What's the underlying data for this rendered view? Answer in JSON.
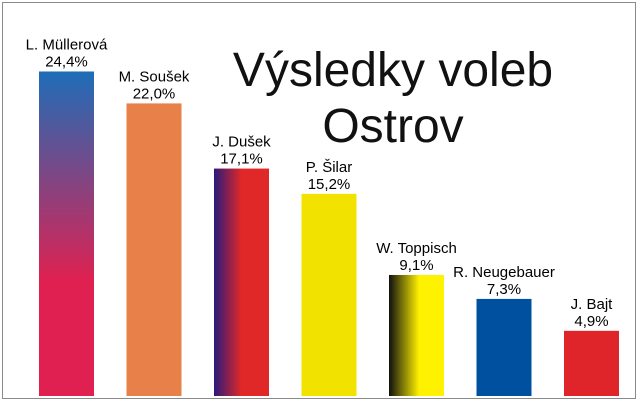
{
  "chart_data": {
    "type": "bar",
    "title_lines": [
      "Výsledky voleb",
      "Ostrov"
    ],
    "categories": [
      "L. Müllerová",
      "M. Soušek",
      "J. Dušek",
      "P. Šilar",
      "W. Toppisch",
      "R. Neugebauer",
      "J. Bajt"
    ],
    "values": [
      24.4,
      22.0,
      17.1,
      15.2,
      9.1,
      7.3,
      4.9
    ],
    "value_labels": [
      "24,4%",
      "22,0%",
      "17,1%",
      "15,2%",
      "9,1%",
      "7,3%",
      "4,9%"
    ],
    "fills": [
      "grad-mullerova",
      "solid-orange",
      "grad-dusek",
      "solid-yellow",
      "grad-toppisch",
      "solid-blue",
      "solid-red"
    ],
    "colors": {
      "orange": "#E8804A",
      "yellow": "#F2E200",
      "blue": "#0050A0",
      "red": "#E0252A",
      "mullerova_top": "#1E6DB8",
      "mullerova_bottom": "#E02050",
      "dusek_left": "#2A1A7A",
      "dusek_right": "#E02828",
      "toppisch_left": "#101010",
      "toppisch_right": "#FFF200"
    },
    "grid": false,
    "legend": "none"
  }
}
